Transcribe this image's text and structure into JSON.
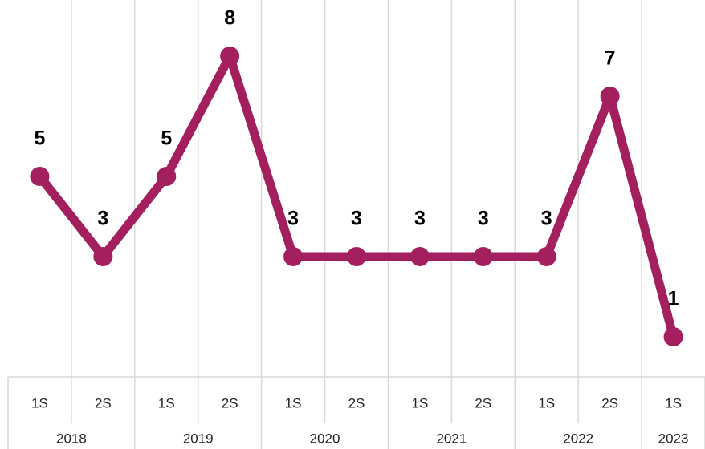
{
  "chart_data": {
    "type": "line",
    "categories": [
      "1S",
      "2S",
      "1S",
      "2S",
      "1S",
      "2S",
      "1S",
      "2S",
      "1S",
      "2S",
      "1S"
    ],
    "category_groups": [
      "2018",
      "2018",
      "2019",
      "2019",
      "2020",
      "2020",
      "2021",
      "2021",
      "2022",
      "2022",
      "2023"
    ],
    "series": [
      {
        "name": "Series",
        "color": "#a31f5e",
        "values": [
          5,
          3,
          5,
          8,
          3,
          3,
          3,
          3,
          3,
          7,
          1
        ]
      }
    ],
    "ylim": [
      0,
      9
    ],
    "grid": true,
    "data_labels": true
  }
}
